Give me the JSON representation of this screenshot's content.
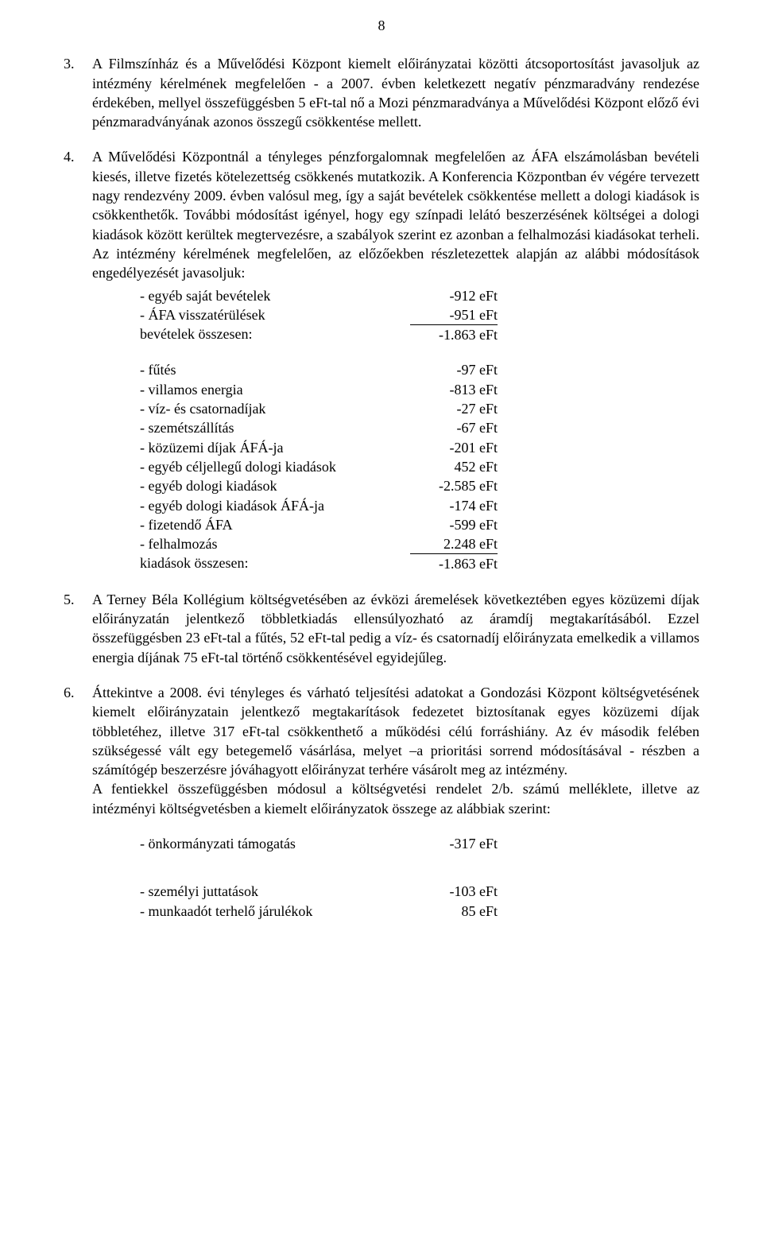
{
  "page": {
    "number": "8"
  },
  "para3": {
    "num": "3.",
    "text": "A Filmszínház és a Művelődési Központ kiemelt előirányzatai közötti átcsoportosítást javasoljuk az intézmény kérelmének megfelelően - a 2007. évben keletkezett negatív pénzmaradvány rendezése érdekében, mellyel összefüggésben 5 eFt-tal nő a Mozi pénzmaradványa a Művelődési Központ előző évi pénzmaradványának azonos összegű csökkentése mellett."
  },
  "para4": {
    "num": "4.",
    "text": "A Művelődési Központnál a tényleges pénzforgalomnak megfelelően az ÁFA elszámolásban bevételi kiesés, illetve fizetés kötelezettség csökkenés mutatkozik. A Konferencia Központban év végére tervezett nagy rendezvény 2009. évben valósul meg, így a saját bevételek csökkentése mellett a dologi kiadások is csökkenthetők. További módosítást igényel, hogy egy színpadi lelátó beszerzésének költségei a dologi kiadások között kerültek megtervezésre, a szabályok szerint ez azonban a felhalmozási kiadásokat terheli. Az intézmény kérelmének megfelelően, az előzőekben részletezettek alapján az alábbi módosítások engedélyezését javasoljuk:",
    "revenues": [
      {
        "label": "- egyéb saját bevételek",
        "value": "-912 eFt"
      },
      {
        "label": "- ÁFA visszatérülések",
        "value": "-951 eFt"
      }
    ],
    "revenues_total": {
      "label": "bevételek összesen:",
      "value": "-1.863 eFt"
    },
    "expenses": [
      {
        "label": "- fűtés",
        "value": "-97 eFt"
      },
      {
        "label": "- villamos energia",
        "value": "-813 eFt"
      },
      {
        "label": "- víz- és csatornadíjak",
        "value": "-27 eFt"
      },
      {
        "label": "- szemétszállítás",
        "value": "-67 eFt"
      },
      {
        "label": "- közüzemi díjak ÁFÁ-ja",
        "value": "-201 eFt"
      },
      {
        "label": "- egyéb céljellegű dologi kiadások",
        "value": "452 eFt"
      },
      {
        "label": "- egyéb dologi kiadások",
        "value": "-2.585 eFt"
      },
      {
        "label": "- egyéb dologi kiadások ÁFÁ-ja",
        "value": "-174 eFt"
      },
      {
        "label": "- fizetendő ÁFA",
        "value": "-599 eFt"
      },
      {
        "label": "- felhalmozás",
        "value": "2.248 eFt"
      }
    ],
    "expenses_total": {
      "label": "kiadások összesen:",
      "value": "-1.863 eFt"
    }
  },
  "para5": {
    "num": "5.",
    "text": "A Terney Béla Kollégium költségvetésében az évközi áremelések következtében egyes közüzemi díjak előirányzatán jelentkező többletkiadás ellensúlyozható az áramdíj megtakarításából. Ezzel összefüggésben 23 eFt-tal a fűtés, 52 eFt-tal pedig a víz- és csatornadíj előirányzata emelkedik a villamos energia díjának 75 eFt-tal történő csökkentésével egyidejűleg."
  },
  "para6": {
    "num": "6.",
    "text": "Áttekintve a 2008. évi tényleges és várható teljesítési adatokat a Gondozási Központ költségvetésének kiemelt előirányzatain jelentkező megtakarítások fedezetet biztosítanak egyes közüzemi díjak többletéhez, illetve 317 eFt-tal csökkenthető a működési célú forráshiány. Az év második felében szükségessé vált egy betegemelő vásárlása, melyet –a prioritási sorrend módosításával - részben a számítógép beszerzésre jóváhagyott előirányzat terhére vásárolt meg az intézmény.",
    "text2": "A fentiekkel összefüggésben módosul a költségvetési rendelet 2/b. számú melléklete, illetve az intézményi költségvetésben a kiemelt előirányzatok összege az alábbiak szerint:",
    "items": [
      {
        "label": "- önkormányzati támogatás",
        "value": "-317 eFt"
      }
    ],
    "items2": [
      {
        "label": "- személyi juttatások",
        "value": "-103 eFt"
      },
      {
        "label": "- munkaadót terhelő járulékok",
        "value": "85 eFt"
      }
    ]
  }
}
